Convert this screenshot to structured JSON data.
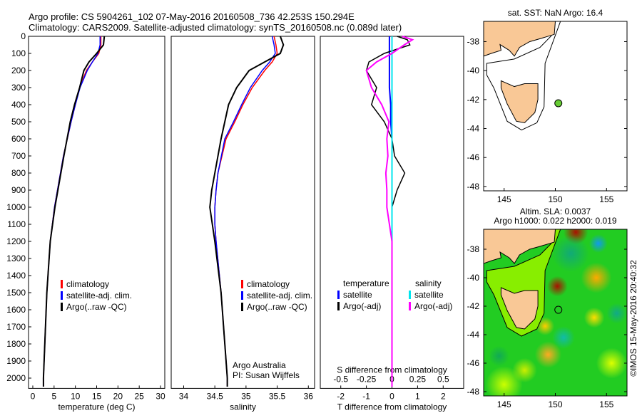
{
  "title": {
    "line1": "Argo profile: CS 5904261_102 07-May-2016 20160508_736 42.253S 150.294E",
    "line2": "Climatology: CARS2009. Satellite-adjusted climatology: synTS_20160508.nc (0.089d later)"
  },
  "colors": {
    "climatology": "#ff0000",
    "satellite": "#0000ff",
    "argo": "#000000",
    "sal_satellite": "#00e5ee",
    "sal_argo": "#ff00ff",
    "land": "#f9c896",
    "point": "#66cc33"
  },
  "chart_data": [
    {
      "type": "line",
      "name": "temperature",
      "xlabel": "temperature (deg C)",
      "ylabel": "",
      "xlim": [
        -1,
        31
      ],
      "ylim": [
        2060,
        0
      ],
      "xticks": [
        0,
        5,
        10,
        15,
        20,
        25,
        30
      ],
      "yticks": [
        0,
        100,
        200,
        300,
        400,
        500,
        600,
        700,
        800,
        900,
        1000,
        1100,
        1200,
        1300,
        1400,
        1500,
        1600,
        1700,
        1800,
        1900,
        2000
      ],
      "depth": [
        0,
        50,
        100,
        150,
        200,
        300,
        400,
        500,
        700,
        1000,
        1200,
        1500,
        2000,
        2050
      ],
      "series": [
        {
          "name": "climatology",
          "values": [
            16,
            16,
            15.5,
            14,
            12.6,
            11,
            10,
            9,
            7.2,
            5.1,
            4.1,
            3.3,
            2.5,
            2.5
          ]
        },
        {
          "name": "satellite-adj. clim.",
          "values": [
            15.8,
            15.8,
            15.3,
            14,
            12.8,
            11.1,
            10,
            9,
            7.2,
            5.1,
            4.1,
            3.3,
            2.5,
            2.5
          ]
        },
        {
          "name": "Argo(..raw -QC)",
          "values": [
            16.8,
            16.6,
            15,
            13.2,
            12,
            11,
            9.8,
            8.8,
            7.3,
            5.2,
            4.1,
            3.3,
            2.5,
            2.5
          ]
        }
      ],
      "legend": [
        "climatology",
        "satellite-adj. clim.",
        "Argo(..raw -QC)"
      ],
      "legend_position": "lower-middle"
    },
    {
      "type": "line",
      "name": "salinity",
      "xlabel": "salinity",
      "ylabel": "",
      "xlim": [
        33.8,
        36.1
      ],
      "ylim": [
        2060,
        0
      ],
      "xticks": [
        34,
        34.5,
        35,
        35.5,
        36
      ],
      "depth": [
        0,
        50,
        100,
        150,
        200,
        300,
        400,
        500,
        600,
        800,
        900,
        1000,
        1100,
        1200,
        1500,
        2000,
        2050
      ],
      "series": [
        {
          "name": "climatology",
          "values": [
            35.45,
            35.48,
            35.5,
            35.42,
            35.3,
            35.1,
            34.95,
            34.82,
            34.68,
            34.55,
            34.52,
            34.5,
            34.5,
            34.52,
            34.6,
            34.7,
            34.7
          ]
        },
        {
          "name": "satellite-adj. clim.",
          "values": [
            35.42,
            35.45,
            35.47,
            35.38,
            35.26,
            35.07,
            34.93,
            34.8,
            34.66,
            34.55,
            34.52,
            34.5,
            34.5,
            34.52,
            34.6,
            34.7,
            34.7
          ]
        },
        {
          "name": "Argo(..raw -QC)",
          "values": [
            35.55,
            35.6,
            35.55,
            35.3,
            35.05,
            34.85,
            34.72,
            34.66,
            34.6,
            34.5,
            34.45,
            34.42,
            34.46,
            34.5,
            34.6,
            34.7,
            34.7
          ]
        }
      ],
      "legend": [
        "climatology",
        "satellite-adj. clim.",
        "Argo(..raw -QC)"
      ],
      "annotation": [
        "Argo Australia",
        "PI: Susan Wijffels"
      ]
    },
    {
      "type": "line",
      "name": "difference",
      "xlabel": "T difference from climatology",
      "x2label": "S difference from climatology",
      "xlim": [
        -2.8,
        2.8
      ],
      "x2lim": [
        -0.7,
        0.7
      ],
      "xticks": [
        -2,
        -1,
        0,
        1,
        2
      ],
      "x2ticks": [
        "-0.5",
        "-0.25",
        "0",
        "0.25",
        "0.5"
      ],
      "depth": [
        0,
        20,
        50,
        100,
        150,
        200,
        300,
        400,
        500,
        600,
        700,
        800,
        900,
        1000,
        1200,
        1500,
        2000,
        2050
      ],
      "series": [
        {
          "name": "temperature satellite",
          "values": [
            -0.1,
            -0.1,
            -0.1,
            -0.1,
            -0.1,
            -0.1,
            -0.1,
            -0.05,
            -0.05,
            0,
            0,
            0,
            0,
            0,
            0,
            0,
            0,
            0
          ]
        },
        {
          "name": "temperature Argo(-adj)",
          "values": [
            0.2,
            0.6,
            0.7,
            -0.3,
            -0.9,
            -1.0,
            -0.6,
            -0.8,
            -0.3,
            0,
            0.1,
            0.5,
            0.2,
            0,
            0,
            0,
            0,
            0
          ]
        },
        {
          "name": "salinity satellite",
          "values": [
            0,
            0,
            0,
            0,
            0,
            0,
            0,
            0,
            0,
            0,
            0,
            0,
            0,
            0,
            0,
            0,
            0,
            0
          ]
        },
        {
          "name": "salinity Argo(-adj)",
          "values": [
            0.1,
            0.2,
            0.12,
            0,
            -0.15,
            -0.25,
            -0.2,
            -0.1,
            -0.03,
            -0.05,
            -0.04,
            -0.06,
            -0.05,
            -0.05,
            0,
            0,
            0,
            0
          ]
        }
      ],
      "legend_headers": [
        "temperature",
        "salinity"
      ],
      "legend": [
        "satellite",
        "Argo(-adj)",
        "satellite",
        "Argo(-adj)"
      ]
    },
    {
      "type": "map",
      "name": "sst-map",
      "title": "sat. SST: NaN Argo: 16.4",
      "xlim": [
        143,
        157
      ],
      "ylim": [
        -48.3,
        -36.6
      ],
      "xticks": [
        145,
        150,
        155
      ],
      "yticks": [
        -38,
        -40,
        -42,
        -44,
        -46,
        -48
      ],
      "point": [
        150.294,
        -42.253
      ]
    },
    {
      "type": "heatmap",
      "name": "sla-map",
      "title": [
        "Altim. SLA: 0.0037",
        "Argo h1000: 0.022 h2000: 0.019"
      ],
      "xlim": [
        143,
        157
      ],
      "ylim": [
        -48.3,
        -36.6
      ],
      "xticks": [
        145,
        150,
        155
      ],
      "yticks": [
        -38,
        -40,
        -42,
        -44,
        -46,
        -48
      ],
      "point": [
        150.294,
        -42.253
      ],
      "credit": "©IMOS 15-May-2016 20:40:32"
    }
  ]
}
